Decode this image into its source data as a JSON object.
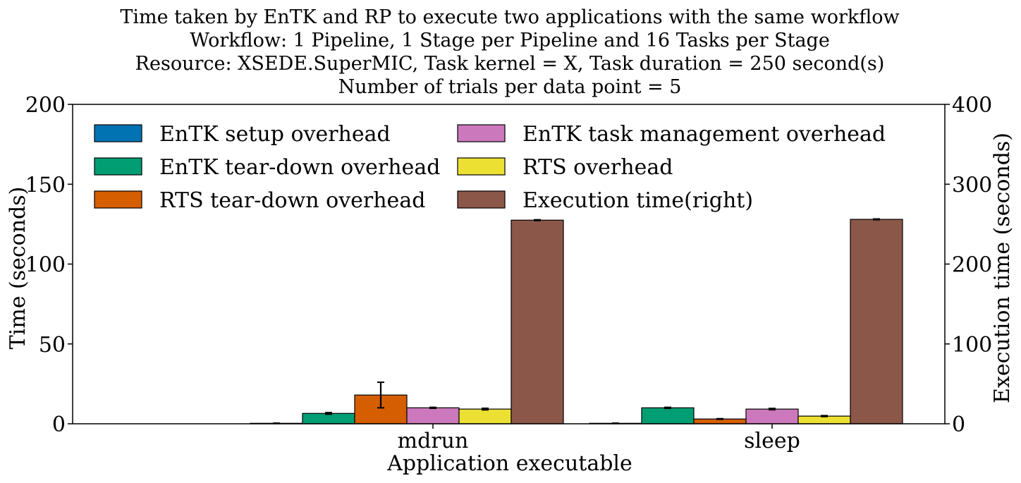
{
  "chart_data": {
    "type": "bar",
    "title_lines": [
      "Time taken by EnTK and RP to execute two applications with the same workflow",
      "Workflow: 1 Pipeline, 1 Stage per Pipeline and 16 Tasks per Stage",
      "Resource: XSEDE.SuperMIC, Task kernel = X, Task duration = 250 second(s)",
      "Number of trials per data point = 5"
    ],
    "xlabel": "Application executable",
    "ylabel": "Time (seconds)",
    "ylabel_right": "Execution time (seconds)",
    "categories": [
      "mdrun",
      "sleep"
    ],
    "ylim": [
      0,
      200
    ],
    "ylim_right": [
      0,
      400
    ],
    "yticks": [
      "0",
      "50",
      "100",
      "150",
      "200"
    ],
    "yticks_right": [
      "0",
      "100",
      "200",
      "300",
      "400"
    ],
    "legend_placement": "upper-left, two columns",
    "series": [
      {
        "name": "EnTK setup overhead",
        "axis": "left",
        "color": "#0173b2",
        "values": [
          0.3,
          0.3
        ],
        "errors": [
          0.1,
          0.1
        ]
      },
      {
        "name": "EnTK tear-down overhead",
        "axis": "left",
        "color": "#029e73",
        "values": [
          6.5,
          10.0
        ],
        "errors": [
          0.5,
          0.3
        ]
      },
      {
        "name": "RTS tear-down overhead",
        "axis": "left",
        "color": "#d55e00",
        "values": [
          18.0,
          3.0
        ],
        "errors": [
          8.0,
          0.2
        ]
      },
      {
        "name": "EnTK task management overhead",
        "axis": "left",
        "color": "#cc78bc",
        "values": [
          10.0,
          9.2
        ],
        "errors": [
          0.3,
          0.4
        ]
      },
      {
        "name": "RTS overhead",
        "axis": "left",
        "color": "#ece133",
        "values": [
          9.2,
          4.8
        ],
        "errors": [
          0.5,
          0.3
        ]
      },
      {
        "name": "Execution time(right)",
        "axis": "right",
        "color": "#8b5749",
        "values": [
          255,
          256
        ],
        "errors": [
          0.5,
          0.5
        ]
      }
    ]
  }
}
